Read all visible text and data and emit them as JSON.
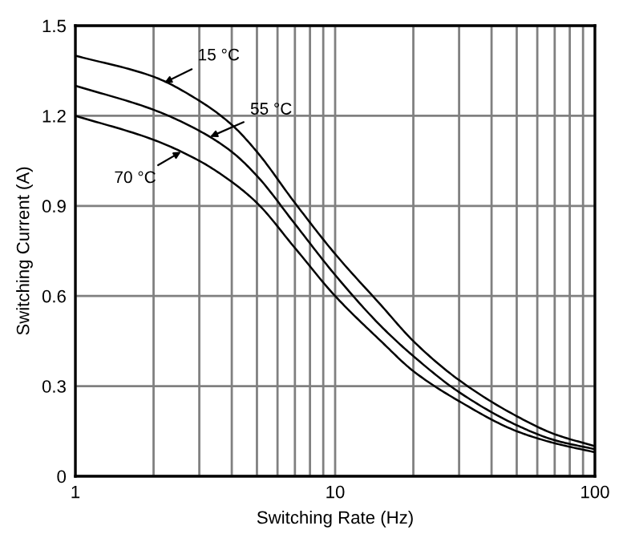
{
  "chart_data": {
    "type": "line",
    "xlabel": "Switching Rate (Hz)",
    "ylabel": "Switching Current (A)",
    "x": [
      1,
      2,
      3,
      4,
      5,
      7,
      10,
      15,
      20,
      30,
      50,
      70,
      100
    ],
    "series": [
      {
        "color": "#000000",
        "values": [
          1.4,
          1.33,
          1.25,
          1.17,
          1.08,
          0.91,
          0.74,
          0.57,
          0.45,
          0.32,
          0.2,
          0.14,
          0.1
        ]
      },
      {
        "color": "#000000",
        "values": [
          1.3,
          1.22,
          1.15,
          1.08,
          1.0,
          0.84,
          0.67,
          0.5,
          0.4,
          0.28,
          0.17,
          0.12,
          0.09
        ]
      },
      {
        "color": "#000000",
        "values": [
          1.2,
          1.12,
          1.05,
          0.98,
          0.91,
          0.76,
          0.6,
          0.45,
          0.35,
          0.25,
          0.15,
          0.11,
          0.08
        ]
      }
    ],
    "annotations": [
      {
        "text": "15 °C",
        "x": 2.2,
        "y": 1.31
      },
      {
        "text": "55 °C",
        "x": 3.3,
        "y": 1.13
      },
      {
        "text": "70 °C",
        "x": 2.55,
        "y": 1.08
      }
    ],
    "log": "x",
    "xlim": [
      1,
      100
    ],
    "xticks": [
      1,
      10,
      100
    ],
    "ylim": [
      0,
      1.5
    ],
    "yticks": [
      0,
      0.3,
      0.6,
      0.9,
      1.2,
      1.5
    ],
    "grid": true,
    "line_style": "solid",
    "marker": "none"
  }
}
